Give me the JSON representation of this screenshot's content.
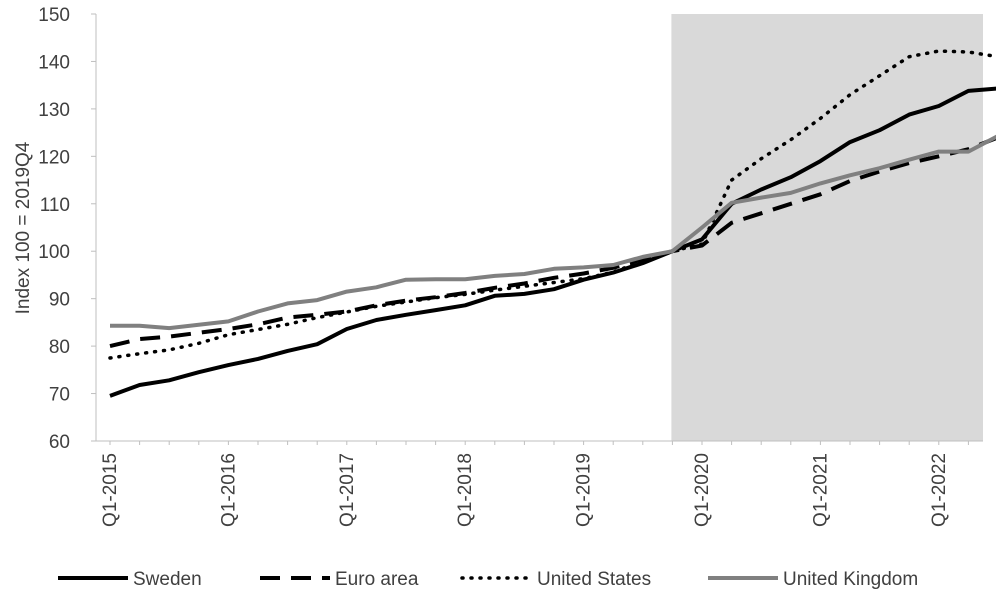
{
  "chart_data": {
    "type": "line",
    "title": "",
    "ylabel": "Index 100 = 2019Q4",
    "xlabel": "",
    "ylim": [
      60,
      150
    ],
    "yticks": [
      60,
      70,
      80,
      90,
      100,
      110,
      120,
      130,
      140,
      150
    ],
    "categories": [
      "Q1-2015",
      "Q2-2015",
      "Q3-2015",
      "Q4-2015",
      "Q1-2016",
      "Q2-2016",
      "Q3-2016",
      "Q4-2016",
      "Q1-2017",
      "Q2-2017",
      "Q3-2017",
      "Q4-2017",
      "Q1-2018",
      "Q2-2018",
      "Q3-2018",
      "Q4-2018",
      "Q1-2019",
      "Q2-2019",
      "Q3-2019",
      "Q4-2019",
      "Q1-2020",
      "Q2-2020",
      "Q3-2020",
      "Q4-2020",
      "Q1-2021",
      "Q2-2021",
      "Q3-2021",
      "Q4-2021",
      "Q1-2022",
      "Q2-2022",
      "Q3-2022"
    ],
    "x_tick_labels": [
      "Q1-2015",
      "Q1-2016",
      "Q1-2017",
      "Q1-2018",
      "Q1-2019",
      "Q1-2020",
      "Q1-2021",
      "Q1-2022"
    ],
    "x_tick_indices": [
      0,
      4,
      8,
      12,
      16,
      20,
      24,
      28
    ],
    "shaded_region": {
      "from_index": 19,
      "to_index": 30,
      "color": "#d9d9d9"
    },
    "grid": false,
    "legend_position": "bottom",
    "series": [
      {
        "name": "Sweden",
        "color": "#000000",
        "dash": "solid",
        "values": [
          69.5,
          71.8,
          72.8,
          74.5,
          76.0,
          77.3,
          79.0,
          80.4,
          83.6,
          85.5,
          86.6,
          87.6,
          88.6,
          90.6,
          91.0,
          92.0,
          94.0,
          95.5,
          97.5,
          100.0,
          102.5,
          110.0,
          113.0,
          115.6,
          119.0,
          123.0,
          125.5,
          128.8,
          130.6,
          133.8,
          134.3
        ]
      },
      {
        "name": "Euro area",
        "color": "#000000",
        "dash": "long-dash",
        "values": [
          80.0,
          81.5,
          82.0,
          82.8,
          83.6,
          84.6,
          86.0,
          86.6,
          87.3,
          88.6,
          89.6,
          90.3,
          91.2,
          92.3,
          93.2,
          94.4,
          95.3,
          96.5,
          98.3,
          100.0,
          101.2,
          106.0,
          108.0,
          110.0,
          112.0,
          114.8,
          116.8,
          118.6,
          120.0,
          121.5,
          124.0
        ]
      },
      {
        "name": "United States",
        "color": "#000000",
        "dash": "dotted",
        "values": [
          77.5,
          78.4,
          79.2,
          80.6,
          82.4,
          83.5,
          84.6,
          86.0,
          87.2,
          88.4,
          89.3,
          90.2,
          90.9,
          91.8,
          92.6,
          93.4,
          94.2,
          95.6,
          97.9,
          100.0,
          101.5,
          115.0,
          119.5,
          123.5,
          128.0,
          133.0,
          137.0,
          141.0,
          142.2,
          142.0,
          141.0
        ]
      },
      {
        "name": "United Kingdom",
        "color": "#808080",
        "dash": "solid",
        "values": [
          84.3,
          84.3,
          83.8,
          84.5,
          85.2,
          87.3,
          89.0,
          89.7,
          91.5,
          92.4,
          94.0,
          94.1,
          94.1,
          94.8,
          95.2,
          96.3,
          96.6,
          97.1,
          98.8,
          100.0,
          105.0,
          110.2,
          111.3,
          112.3,
          114.3,
          116.0,
          117.5,
          119.3,
          121.0,
          121.0,
          124.3
        ]
      }
    ]
  }
}
